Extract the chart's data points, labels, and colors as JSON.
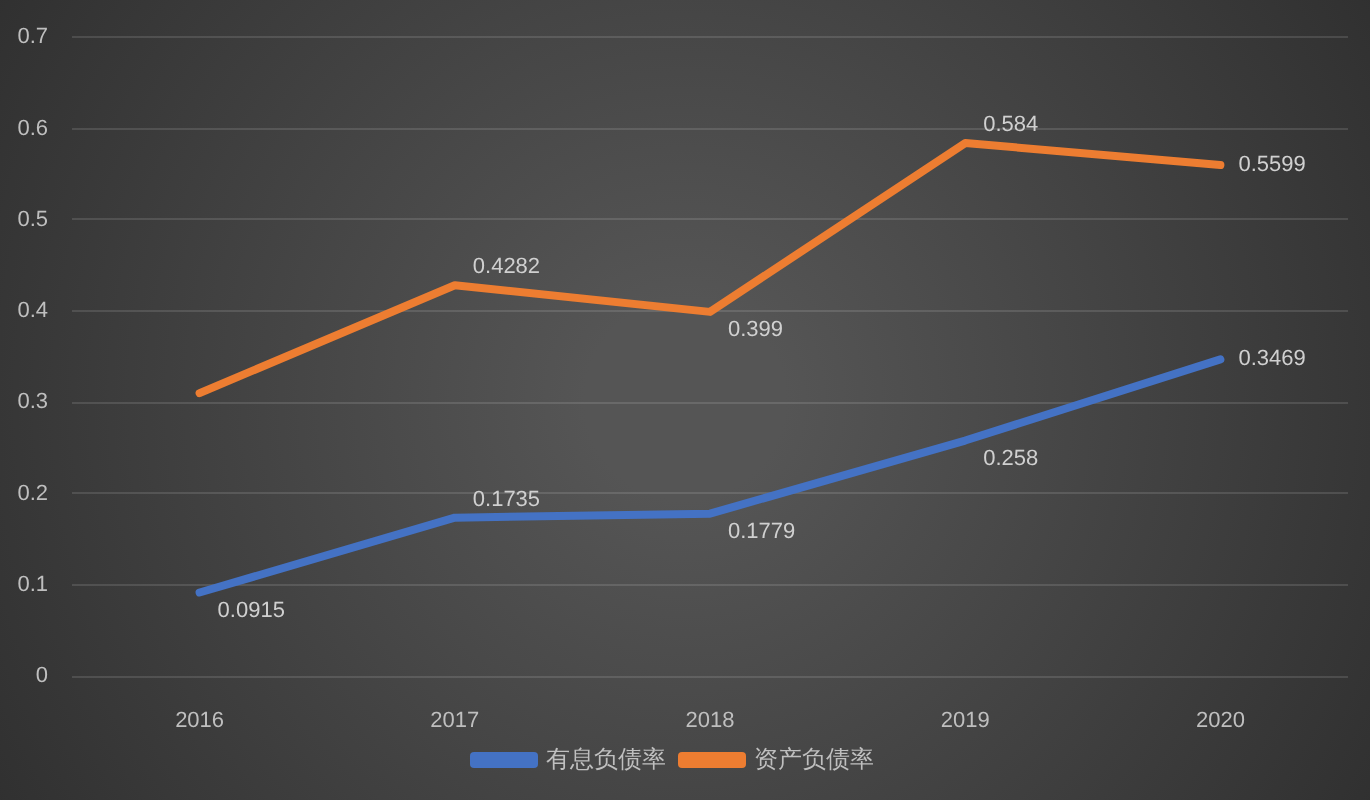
{
  "chart_data": {
    "type": "line",
    "categories": [
      "2016",
      "2017",
      "2018",
      "2019",
      "2020"
    ],
    "series": [
      {
        "name": "有息负债率",
        "color": "#4472c4",
        "values": [
          0.0915,
          0.1735,
          0.1779,
          0.258,
          0.3469
        ],
        "value_labels": [
          "0.0915",
          "0.1735",
          "0.1779",
          "0.258",
          "0.3469"
        ]
      },
      {
        "name": "资产负债率",
        "color": "#ed7d31",
        "values": [
          0.31,
          0.4282,
          0.399,
          0.584,
          0.5599
        ],
        "value_labels": [
          null,
          "0.4282",
          "0.399",
          "0.584",
          "0.5599"
        ]
      }
    ],
    "ylim": [
      0,
      0.7
    ],
    "yticks": [
      0,
      0.1,
      0.2,
      0.3,
      0.4,
      0.5,
      0.6,
      0.7
    ],
    "grid": "y",
    "legend": "bottom",
    "marker": "none",
    "line_style": "solid"
  }
}
